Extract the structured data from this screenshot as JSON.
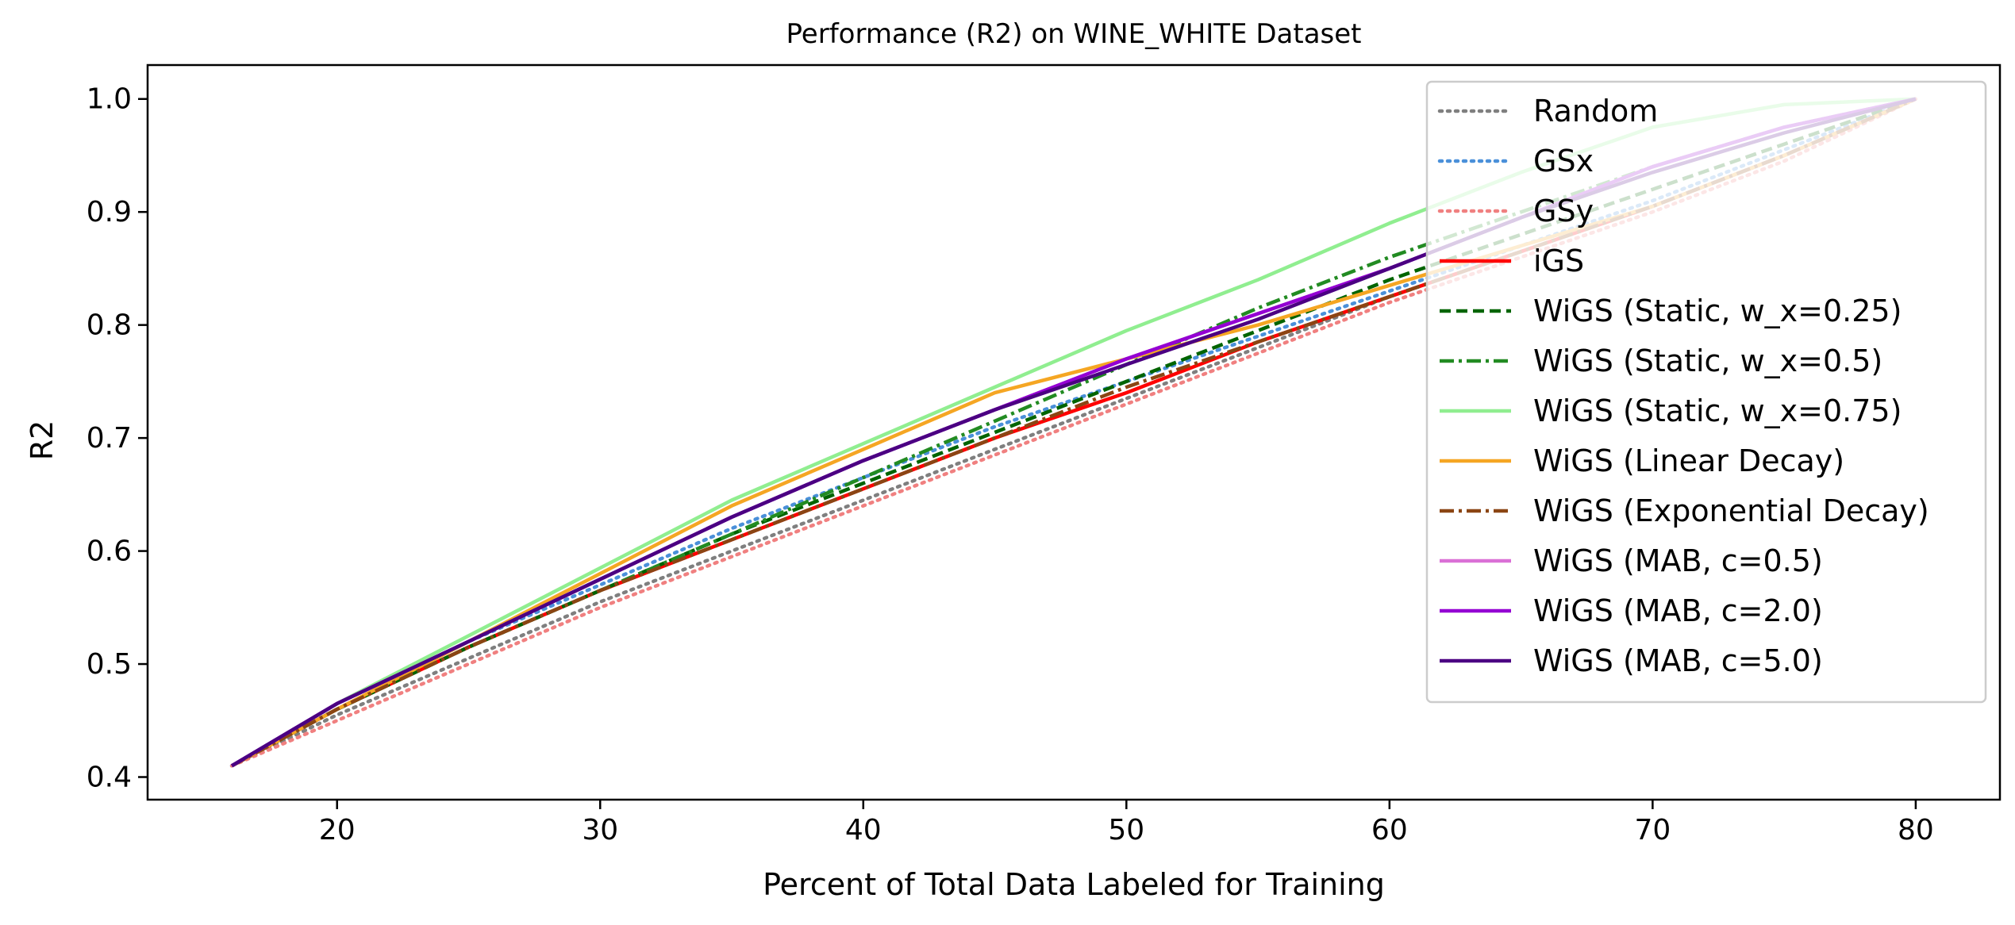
{
  "chart_data": {
    "type": "line",
    "title": "Performance (R2) on WINE_WHITE Dataset",
    "xlabel": "Percent of Total Data Labeled for Training",
    "ylabel": "R2",
    "xlim": [
      12.8,
      83.2
    ],
    "ylim": [
      0.38,
      1.03
    ],
    "x_ticks": [
      20,
      30,
      40,
      50,
      60,
      70,
      80
    ],
    "y_ticks": [
      0.4,
      0.5,
      0.6,
      0.7,
      0.8,
      0.9,
      1.0
    ],
    "x_tick_labels": [
      "20",
      "30",
      "40",
      "50",
      "60",
      "70",
      "80"
    ],
    "y_tick_labels": [
      "0.4",
      "0.5",
      "0.6",
      "0.7",
      "0.8",
      "0.9",
      "1.0"
    ],
    "grid": false,
    "legend_position": "top-right",
    "series": [
      {
        "name": "Random",
        "color": "#7f7f7f",
        "style": "dotted",
        "x": [
          16,
          20,
          25,
          30,
          35,
          40,
          45,
          50,
          55,
          60,
          65,
          70,
          75,
          80
        ],
        "y": [
          0.41,
          0.455,
          0.505,
          0.555,
          0.6,
          0.645,
          0.69,
          0.735,
          0.78,
          0.825,
          0.865,
          0.905,
          0.95,
          1.0
        ]
      },
      {
        "name": "GSx",
        "color": "#4a90d9",
        "style": "dotted",
        "x": [
          16,
          20,
          25,
          30,
          35,
          40,
          45,
          50,
          55,
          60,
          65,
          70,
          75,
          80
        ],
        "y": [
          0.41,
          0.465,
          0.52,
          0.57,
          0.62,
          0.665,
          0.71,
          0.75,
          0.79,
          0.83,
          0.87,
          0.91,
          0.955,
          1.0
        ]
      },
      {
        "name": "GSy",
        "color": "#f08080",
        "style": "dotted",
        "x": [
          16,
          20,
          25,
          30,
          35,
          40,
          45,
          50,
          55,
          60,
          65,
          70,
          75,
          80
        ],
        "y": [
          0.41,
          0.45,
          0.5,
          0.55,
          0.595,
          0.64,
          0.685,
          0.73,
          0.775,
          0.82,
          0.86,
          0.9,
          0.945,
          1.0
        ]
      },
      {
        "name": "iGS",
        "color": "#ff0000",
        "style": "solid",
        "x": [
          16,
          20,
          25,
          30,
          35,
          40,
          45,
          50,
          55,
          60,
          65,
          70,
          75,
          80
        ],
        "y": [
          0.41,
          0.46,
          0.515,
          0.565,
          0.61,
          0.655,
          0.7,
          0.74,
          0.785,
          0.825,
          0.865,
          0.905,
          0.95,
          1.0
        ]
      },
      {
        "name": "WiGS (Static, w_x=0.25)",
        "color": "#006400",
        "style": "dashed",
        "x": [
          16,
          20,
          25,
          30,
          35,
          40,
          45,
          50,
          55,
          60,
          65,
          70,
          75,
          80
        ],
        "y": [
          0.41,
          0.46,
          0.515,
          0.565,
          0.615,
          0.66,
          0.705,
          0.75,
          0.795,
          0.84,
          0.88,
          0.92,
          0.96,
          1.0
        ]
      },
      {
        "name": "WiGS (Static, w_x=0.5)",
        "color": "#228b22",
        "style": "dashdot",
        "x": [
          16,
          20,
          25,
          30,
          35,
          40,
          45,
          50,
          55,
          60,
          65,
          70,
          75,
          80
        ],
        "y": [
          0.41,
          0.46,
          0.515,
          0.565,
          0.615,
          0.665,
          0.715,
          0.765,
          0.815,
          0.86,
          0.9,
          0.94,
          0.975,
          1.0
        ]
      },
      {
        "name": "WiGS (Static, w_x=0.75)",
        "color": "#90ee90",
        "style": "solid",
        "x": [
          16,
          20,
          25,
          30,
          35,
          40,
          45,
          50,
          55,
          60,
          65,
          70,
          75,
          80
        ],
        "y": [
          0.41,
          0.465,
          0.525,
          0.585,
          0.645,
          0.695,
          0.745,
          0.795,
          0.84,
          0.89,
          0.935,
          0.975,
          0.995,
          1.0
        ]
      },
      {
        "name": "WiGS (Linear Decay)",
        "color": "#f5a623",
        "style": "solid",
        "x": [
          16,
          20,
          25,
          30,
          35,
          40,
          45,
          50,
          55,
          60,
          65,
          70,
          75,
          80
        ],
        "y": [
          0.41,
          0.46,
          0.52,
          0.58,
          0.64,
          0.69,
          0.74,
          0.77,
          0.8,
          0.835,
          0.87,
          0.905,
          0.95,
          1.0
        ]
      },
      {
        "name": "WiGS (Exponential Decay)",
        "color": "#8b4513",
        "style": "dashdot",
        "x": [
          16,
          20,
          25,
          30,
          35,
          40,
          45,
          50,
          55,
          60,
          65,
          70,
          75,
          80
        ],
        "y": [
          0.41,
          0.46,
          0.515,
          0.565,
          0.61,
          0.655,
          0.7,
          0.745,
          0.785,
          0.825,
          0.865,
          0.905,
          0.95,
          1.0
        ]
      },
      {
        "name": "WiGS (MAB, c=0.5)",
        "color": "#da70d6",
        "style": "solid",
        "x": [
          16,
          20,
          25,
          30,
          35,
          40,
          45,
          50,
          55,
          60,
          65,
          70,
          75,
          80
        ],
        "y": [
          0.41,
          0.465,
          0.52,
          0.575,
          0.63,
          0.68,
          0.725,
          0.77,
          0.81,
          0.85,
          0.895,
          0.94,
          0.975,
          1.0
        ]
      },
      {
        "name": "WiGS (MAB, c=2.0)",
        "color": "#9400d3",
        "style": "solid",
        "x": [
          16,
          20,
          25,
          30,
          35,
          40,
          45,
          50,
          55,
          60,
          65,
          70,
          75,
          80
        ],
        "y": [
          0.41,
          0.465,
          0.52,
          0.575,
          0.63,
          0.68,
          0.725,
          0.77,
          0.81,
          0.85,
          0.895,
          0.94,
          0.975,
          1.0
        ]
      },
      {
        "name": "WiGS (MAB, c=5.0)",
        "color": "#4b0082",
        "style": "solid",
        "x": [
          16,
          20,
          25,
          30,
          35,
          40,
          45,
          50,
          55,
          60,
          65,
          70,
          75,
          80
        ],
        "y": [
          0.41,
          0.465,
          0.52,
          0.575,
          0.63,
          0.68,
          0.725,
          0.765,
          0.805,
          0.85,
          0.895,
          0.935,
          0.97,
          1.0
        ]
      }
    ]
  }
}
